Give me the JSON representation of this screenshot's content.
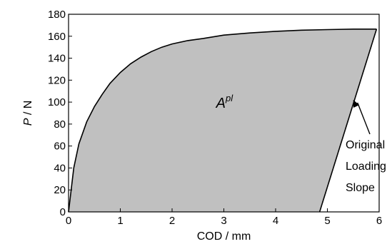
{
  "chart_data": {
    "type": "area",
    "xlabel": "COD / mm",
    "ylabel_italic": "P",
    "ylabel_rest": " / N",
    "xlim": [
      0,
      6
    ],
    "ylim": [
      0,
      180
    ],
    "xticks": [
      0,
      1,
      2,
      3,
      4,
      5,
      6
    ],
    "yticks": [
      0,
      20,
      40,
      60,
      80,
      100,
      120,
      140,
      160,
      180
    ],
    "grid": false,
    "fill_color": "#c0c0c0",
    "line_color": "#000000",
    "loading_curve": [
      [
        0,
        0
      ],
      [
        0.1,
        40
      ],
      [
        0.2,
        62
      ],
      [
        0.35,
        82
      ],
      [
        0.5,
        96
      ],
      [
        0.65,
        107
      ],
      [
        0.8,
        117
      ],
      [
        1.0,
        127
      ],
      [
        1.2,
        135
      ],
      [
        1.4,
        141
      ],
      [
        1.6,
        146
      ],
      [
        1.8,
        150
      ],
      [
        2.0,
        153
      ],
      [
        2.3,
        156
      ],
      [
        2.6,
        158
      ],
      [
        3.0,
        161
      ],
      [
        3.5,
        163
      ],
      [
        4.0,
        164.5
      ],
      [
        4.5,
        165.5
      ],
      [
        5.0,
        166
      ],
      [
        5.5,
        166.5
      ],
      [
        5.95,
        166.5
      ]
    ],
    "unloading_line": [
      [
        5.95,
        166.5
      ],
      [
        4.85,
        0
      ]
    ],
    "area_label_base": "A",
    "area_label_sup": "pl",
    "area_label_at": [
      2.85,
      95
    ],
    "annotation_lines": [
      "Original",
      "Loading",
      "Slope"
    ],
    "arrow_tip": [
      5.5,
      102
    ]
  }
}
